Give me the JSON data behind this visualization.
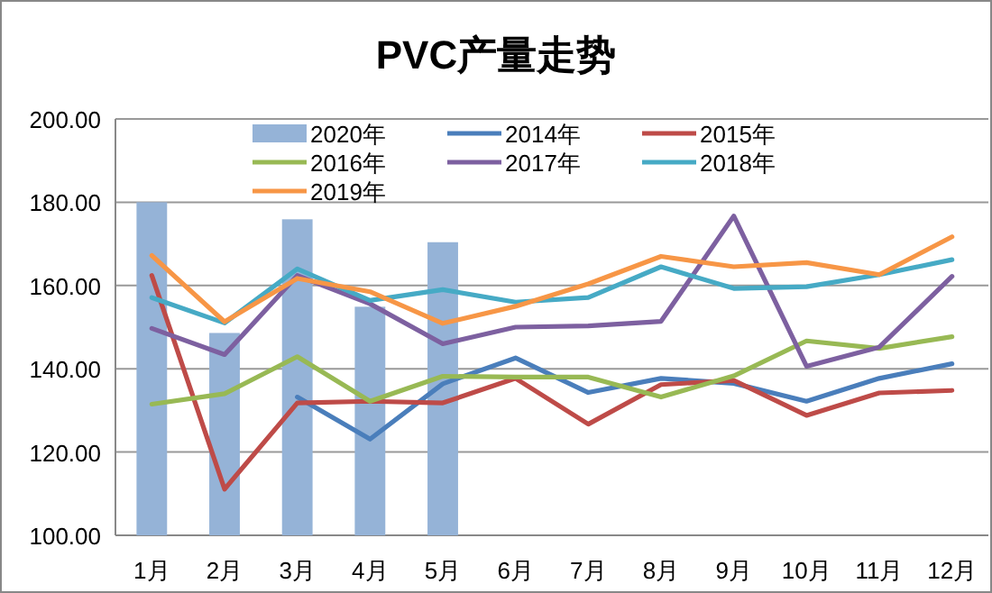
{
  "chart_data": {
    "type": "line",
    "title": "PVC产量走势",
    "categories": [
      "1月",
      "2月",
      "3月",
      "4月",
      "5月",
      "6月",
      "7月",
      "8月",
      "9月",
      "10月",
      "11月",
      "12月"
    ],
    "ylim": [
      100,
      200
    ],
    "yticks": [
      {
        "value": 100,
        "label": "100.00"
      },
      {
        "value": 120,
        "label": "120.00"
      },
      {
        "value": 140,
        "label": "140.00"
      },
      {
        "value": 160,
        "label": "160.00"
      },
      {
        "value": 180,
        "label": "180.00"
      },
      {
        "value": 200,
        "label": "200.00"
      }
    ],
    "grid": "y",
    "legend": "top",
    "marker": "none",
    "line_style": "solid",
    "series": [
      {
        "name": "2020年",
        "type": "bar",
        "color": "#95b3d7",
        "values": [
          180,
          148.6,
          175.9,
          154.9,
          170.4,
          null,
          null,
          null,
          null,
          null,
          null,
          null
        ]
      },
      {
        "name": "2014年",
        "color": "#4a7ebb",
        "values": [
          null,
          null,
          133.2,
          123.1,
          136.4,
          142.6,
          134.3,
          137.7,
          136.5,
          132.2,
          137.7,
          141.2
        ]
      },
      {
        "name": "2015年",
        "color": "#be4b48",
        "values": [
          162.4,
          111.1,
          131.8,
          132.2,
          131.8,
          137.7,
          126.7,
          136.2,
          137.2,
          128.8,
          134.2,
          134.8
        ]
      },
      {
        "name": "2016年",
        "color": "#98b954",
        "values": [
          131.5,
          134,
          142.9,
          132.2,
          138.2,
          138,
          138,
          133.2,
          138.3,
          146.7,
          144.9,
          147.7
        ]
      },
      {
        "name": "2017年",
        "color": "#7d60a0",
        "values": [
          149.7,
          143.4,
          162.4,
          155.6,
          146,
          150,
          150.3,
          151.4,
          176.7,
          140.6,
          145.2,
          162.2
        ]
      },
      {
        "name": "2018年",
        "color": "#46aac5",
        "values": [
          157.1,
          151,
          164,
          156.4,
          159,
          156,
          157.1,
          164.5,
          159.3,
          159.7,
          162.6,
          166.2
        ]
      },
      {
        "name": "2019年",
        "color": "#f79646",
        "values": [
          167.2,
          151.3,
          161.7,
          158.5,
          150.9,
          155,
          160.4,
          167,
          164.5,
          165.5,
          162.6,
          171.7
        ]
      }
    ]
  }
}
